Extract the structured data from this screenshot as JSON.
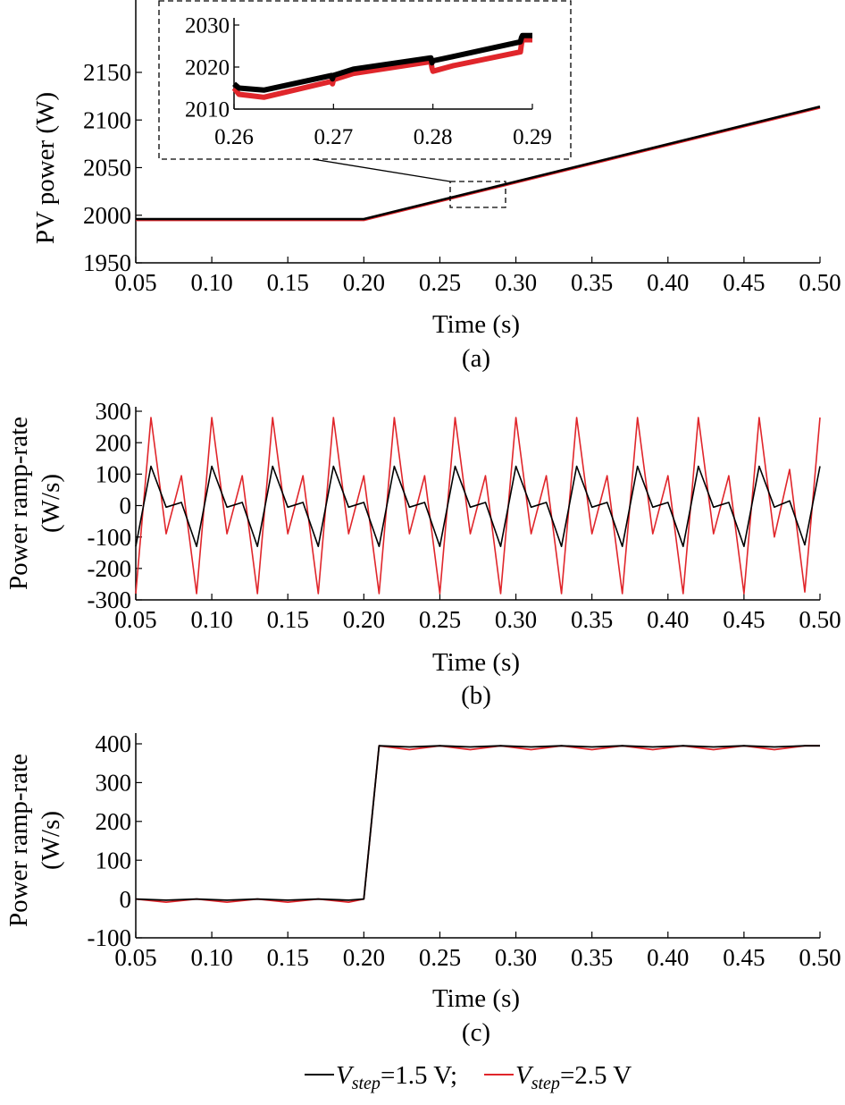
{
  "colors": {
    "black_series": "#000000",
    "red_series": "#e0262b"
  },
  "legend": {
    "items": [
      {
        "prefix": "V",
        "sub": "step",
        "suffix": "=1.5 V;",
        "color": "#000000"
      },
      {
        "prefix": "V",
        "sub": "step",
        "suffix": "=2.5 V",
        "color": "#e0262b"
      }
    ]
  },
  "chart_data": [
    {
      "type": "line",
      "caption": "(a)",
      "xlabel": "Time (s)",
      "ylabel": "PV power (W)",
      "xlim": [
        0.05,
        0.5
      ],
      "ylim": [
        1950,
        2180
      ],
      "xticks": [
        "0.05",
        "0.10",
        "0.15",
        "0.20",
        "0.25",
        "0.30",
        "0.35",
        "0.40",
        "0.45",
        "0.50"
      ],
      "yticks": [
        "1950",
        "2000",
        "2050",
        "2100",
        "2150"
      ],
      "series": [
        {
          "color": "#000000",
          "x": [
            0.05,
            0.2,
            0.5
          ],
          "y": [
            1996,
            1996,
            2114
          ]
        },
        {
          "color": "#e0262b",
          "x": [
            0.05,
            0.2,
            0.5
          ],
          "y": [
            1995,
            1995,
            2113
          ]
        }
      ],
      "inset": {
        "xlim": [
          0.26,
          0.29
        ],
        "ylim": [
          2010,
          2030
        ],
        "xticks": [
          "0.26",
          "0.27",
          "0.28",
          "0.29"
        ],
        "yticks": [
          "2010",
          "2020",
          "2030"
        ],
        "series": [
          {
            "color": "#000000",
            "x": [
              0.26,
              0.2605,
              0.263,
              0.2698,
              0.2699,
              0.27,
              0.272,
              0.2798,
              0.2799,
              0.28,
              0.282,
              0.2888,
              0.2889,
              0.289,
              0.29
            ],
            "y": [
              2016,
              2015,
              2014.5,
              2018,
              2017.2,
              2018,
              2019.5,
              2022.2,
              2021,
              2021.5,
              2022.5,
              2026,
              2027,
              2027.5,
              2027.5
            ]
          },
          {
            "color": "#e0262b",
            "x": [
              0.26,
              0.2605,
              0.263,
              0.2698,
              0.2699,
              0.27,
              0.272,
              0.2798,
              0.2799,
              0.28,
              0.282,
              0.2888,
              0.2889,
              0.289,
              0.29
            ],
            "y": [
              2015,
              2013.5,
              2012.8,
              2016.6,
              2016,
              2017,
              2018.5,
              2021.3,
              2019.8,
              2019,
              2020.3,
              2023.6,
              2025.5,
              2026.5,
              2026.5
            ]
          }
        ]
      }
    },
    {
      "type": "line",
      "caption": "(b)",
      "xlabel": "Time (s)",
      "ylabel_lines": [
        "Power ramp-rate",
        "(W/s)"
      ],
      "xlim": [
        0.05,
        0.5
      ],
      "ylim": [
        -300,
        300
      ],
      "xticks": [
        "0.05",
        "0.10",
        "0.15",
        "0.20",
        "0.25",
        "0.30",
        "0.35",
        "0.40",
        "0.45",
        "0.50"
      ],
      "yticks": [
        "-300",
        "-200",
        "-100",
        "0",
        "100",
        "200",
        "300"
      ],
      "series": [
        {
          "color": "#000000",
          "x": [
            0.05,
            0.06,
            0.07,
            0.08,
            0.09,
            0.1,
            0.11,
            0.12,
            0.13,
            0.14,
            0.15,
            0.16,
            0.17,
            0.18,
            0.19,
            0.2,
            0.21,
            0.22,
            0.23,
            0.24,
            0.25,
            0.26,
            0.27,
            0.28,
            0.29,
            0.3,
            0.31,
            0.32,
            0.33,
            0.34,
            0.35,
            0.36,
            0.37,
            0.38,
            0.39,
            0.4,
            0.41,
            0.42,
            0.43,
            0.44,
            0.45,
            0.46,
            0.47,
            0.48,
            0.49,
            0.5
          ],
          "y": [
            -130,
            125,
            -5,
            10,
            -130,
            125,
            -5,
            10,
            -130,
            125,
            -5,
            10,
            -130,
            125,
            -5,
            10,
            -130,
            125,
            -5,
            10,
            -130,
            125,
            -5,
            10,
            -130,
            125,
            -5,
            10,
            -130,
            125,
            -5,
            10,
            -130,
            125,
            -5,
            10,
            -130,
            125,
            -5,
            10,
            -130,
            125,
            -5,
            15,
            -125,
            125
          ]
        },
        {
          "color": "#e0262b",
          "x": [
            0.05,
            0.06,
            0.07,
            0.08,
            0.09,
            0.1,
            0.11,
            0.12,
            0.13,
            0.14,
            0.15,
            0.16,
            0.17,
            0.18,
            0.19,
            0.2,
            0.21,
            0.22,
            0.23,
            0.24,
            0.25,
            0.26,
            0.27,
            0.28,
            0.29,
            0.3,
            0.31,
            0.32,
            0.33,
            0.34,
            0.35,
            0.36,
            0.37,
            0.38,
            0.39,
            0.4,
            0.41,
            0.42,
            0.43,
            0.44,
            0.45,
            0.46,
            0.47,
            0.48,
            0.49,
            0.5
          ],
          "y": [
            -280,
            280,
            -90,
            95,
            -280,
            280,
            -90,
            95,
            -280,
            280,
            -90,
            95,
            -280,
            280,
            -90,
            95,
            -280,
            280,
            -90,
            95,
            -280,
            280,
            -90,
            95,
            -280,
            280,
            -90,
            95,
            -280,
            280,
            -90,
            95,
            -280,
            280,
            -90,
            95,
            -280,
            280,
            -90,
            95,
            -280,
            280,
            -100,
            115,
            -275,
            280
          ]
        }
      ]
    },
    {
      "type": "line",
      "caption": "(c)",
      "xlabel": "Time (s)",
      "ylabel_lines": [
        "Power ramp-rate",
        "(W/s)"
      ],
      "xlim": [
        0.05,
        0.5
      ],
      "ylim": [
        -100,
        400
      ],
      "xticks": [
        "0.05",
        "0.10",
        "0.15",
        "0.20",
        "0.25",
        "0.30",
        "0.35",
        "0.40",
        "0.45",
        "0.50"
      ],
      "yticks": [
        "-100",
        "0",
        "100",
        "200",
        "300",
        "400"
      ],
      "series": [
        {
          "color": "#000000",
          "x": [
            0.05,
            0.07,
            0.09,
            0.11,
            0.13,
            0.15,
            0.17,
            0.19,
            0.2,
            0.21,
            0.23,
            0.25,
            0.27,
            0.29,
            0.31,
            0.33,
            0.35,
            0.37,
            0.39,
            0.41,
            0.43,
            0.45,
            0.47,
            0.49,
            0.5
          ],
          "y": [
            0,
            -3,
            0,
            -3,
            0,
            -3,
            0,
            -3,
            0,
            395,
            392,
            395,
            392,
            395,
            392,
            395,
            392,
            395,
            392,
            395,
            392,
            395,
            392,
            395,
            395
          ]
        },
        {
          "color": "#e0262b",
          "x": [
            0.05,
            0.07,
            0.09,
            0.11,
            0.13,
            0.15,
            0.17,
            0.19,
            0.2,
            0.21,
            0.23,
            0.25,
            0.27,
            0.29,
            0.31,
            0.33,
            0.35,
            0.37,
            0.39,
            0.41,
            0.43,
            0.45,
            0.47,
            0.49,
            0.5
          ],
          "y": [
            0,
            -8,
            0,
            -8,
            0,
            -8,
            0,
            -8,
            0,
            395,
            385,
            395,
            385,
            395,
            385,
            395,
            385,
            395,
            385,
            395,
            385,
            395,
            385,
            395,
            395
          ]
        }
      ]
    }
  ]
}
